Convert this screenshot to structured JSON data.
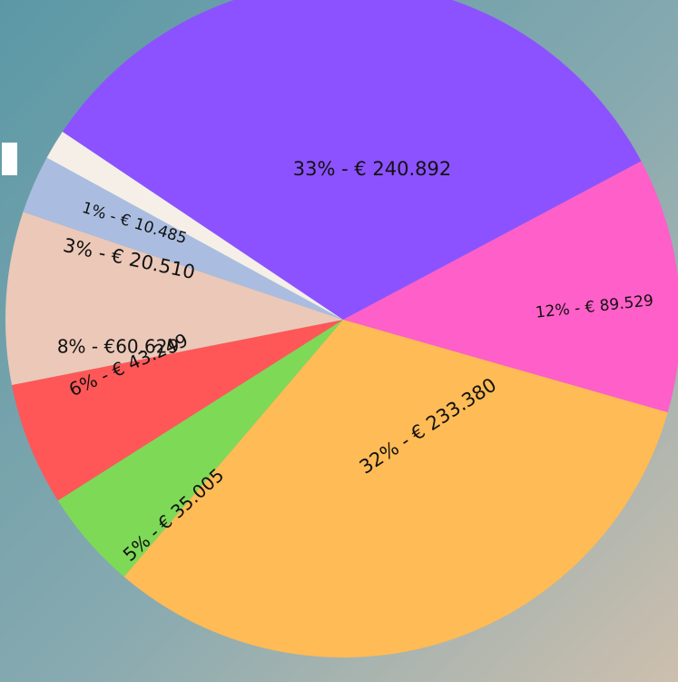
{
  "chart_data": {
    "type": "pie",
    "values": [
      89529,
      233380,
      35005,
      43249,
      60629,
      20510,
      10485,
      240892
    ],
    "value_labels": [
      "12% - € 89.529",
      "32% - € 233.380",
      "5% - € 35.005",
      "6% - € 43.249",
      "8% - €60.629",
      "3% - € 20.510",
      "1% - € 10.485",
      "33% - € 240.892"
    ],
    "colors": [
      "#ff5fc8",
      "#ffbb55",
      "#7ed957",
      "#ff5757",
      "#ebc8b8",
      "#aabde0",
      "#f5efe8",
      "#8c52ff"
    ]
  }
}
